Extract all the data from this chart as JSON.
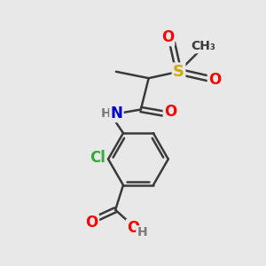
{
  "bg_color": "#e8e8e8",
  "bond_color": "#3a3a3a",
  "bond_width": 1.8,
  "atom_colors": {
    "O": "#ff0000",
    "N": "#0000cc",
    "Cl": "#33aa33",
    "S": "#ccaa00",
    "C": "#3a3a3a",
    "H": "#7a7a7a"
  },
  "font_size": 11
}
